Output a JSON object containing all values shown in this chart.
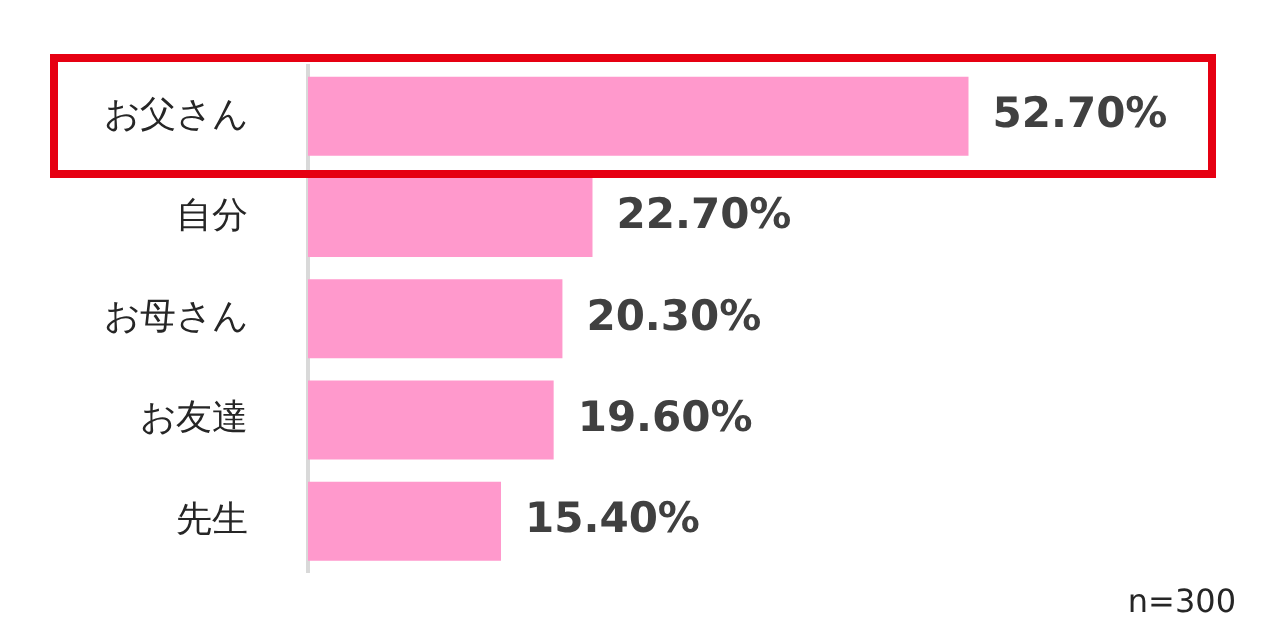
{
  "chart_data": {
    "type": "bar",
    "orientation": "horizontal",
    "categories": [
      "お父さん",
      "自分",
      "お母さん",
      "お友達",
      "先生"
    ],
    "values": [
      52.7,
      22.7,
      20.3,
      19.6,
      15.4
    ],
    "value_labels": [
      "52.70%",
      "22.70%",
      "20.30%",
      "19.60%",
      "15.40%"
    ],
    "color": "#ff99cc",
    "tick_labels": "y",
    "annotations": [
      "n=300"
    ]
  }
}
